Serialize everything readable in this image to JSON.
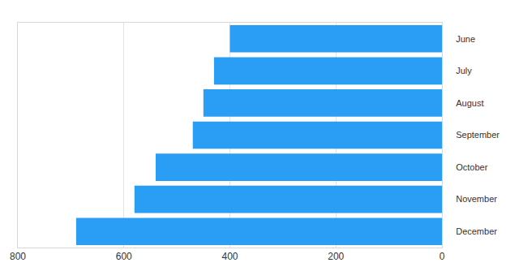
{
  "chart_data": {
    "type": "bar",
    "orientation": "horizontal",
    "categories": [
      "June",
      "July",
      "August",
      "September",
      "October",
      "November",
      "December"
    ],
    "values": [
      400,
      430,
      450,
      470,
      540,
      580,
      690
    ],
    "color": "#2a9df4",
    "xlim": [
      800,
      0
    ],
    "xticks": [
      0,
      200,
      400,
      600,
      800
    ],
    "grid": true
  }
}
